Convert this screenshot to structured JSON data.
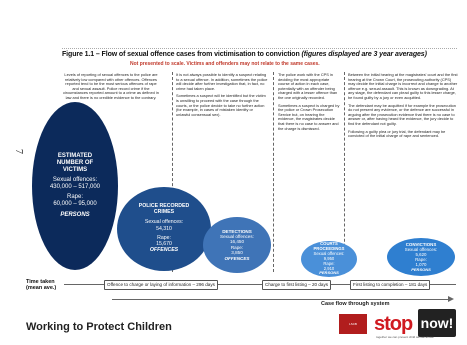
{
  "page": {
    "number": "7"
  },
  "figure": {
    "title": "Figure 1.1 – Flow of sexual offence cases from victimisation to conviction",
    "title_emph": "(figures displayed are 3 year averages)",
    "note": "Not presented to scale. Victims and offenders may not relate to the same cases."
  },
  "columns": [
    {
      "paragraphs": [
        "Levels of reporting of sexual offences to the police are relatively low compared with other offences. Offences reported tend to be the most serious offences of rape and sexual assault. Police record crime if the circumstances reported amount to a crime as defined in law and there is no credible evidence to the contrary."
      ]
    },
    {
      "paragraphs": [
        "It is not always possible to identify a suspect relating to a sexual offence. In addition, sometimes the police will decide after further investigation that, in fact, no crime had taken place.",
        "Sometimes a suspect will be identified but the victim is unwilling to proceed with the case through the courts, or the police decide to take no further action (for example, in cases of mistaken identity or unlawful consensual sex)."
      ]
    },
    {
      "paragraphs": [
        "The police work with the CPS in deciding the most appropriate course of action in each case, potentially with an offender being charged with a lesser offence than the one originally recorded.",
        "Sometimes a suspect is charged by the police or Crown Prosecution Service but, on hearing the evidence, the magistrates decide that there is no case to answer and the charge is dismissed."
      ]
    },
    {
      "paragraphs": [
        "Between the initial hearing at the magistrates' court and the first hearing at the Crown Court, the prosecuting authority (CPS) may decide the initial charge is incorrect and change to another offence e.g. sexual assault. This is known as downgrading. At any stage, the defendant can plead guilty to this lesser charge, be found guilty by a jury or even acquitted.",
        "The defendant may be acquitted if for example the prosecution do not present any evidence, or the defence are successful in arguing after the prosecution evidence that there is no case to answer or, after having heard the evidence, the jury decide to find the defendant not guilty.",
        "Following a guilty plea or jury trial, the defendant may be convicted of the initial charge of rape and sentenced."
      ]
    }
  ],
  "stages": [
    {
      "title": "ESTIMATED NUMBER OF VICTIMS",
      "label1": "Sexual offences:",
      "value1": "430,000 – 517,000",
      "label2": "Rape:",
      "value2": "60,000 – 95,000",
      "foot": "PERSONS"
    },
    {
      "title": "POLICE RECORDED CRIMES",
      "label1": "Sexual offences:",
      "value1": "54,310",
      "label2": "Rape:",
      "value2": "15,670",
      "foot": "OFFENCES"
    },
    {
      "title": "DETECTIONS",
      "label1": "Sexual offences:",
      "value1": "16,450",
      "label2": "Rape:",
      "value2": "3,850",
      "foot": "OFFENCES"
    },
    {
      "title": "COURTS PROCEEDINGS",
      "label1": "Sexual offences:",
      "value1": "9,950",
      "label2": "Rape:",
      "value2": "2,910",
      "foot": "PERSONS"
    },
    {
      "title": "CONVICTIONS",
      "label1": "Sexual offences:",
      "value1": "5,620",
      "label2": "Rape:",
      "value2": "1,070",
      "foot": "PERSONS"
    }
  ],
  "timeline": {
    "label": "Time taken (mean ave.)",
    "segments": [
      "Offence to charge or laying of information – 296 days",
      "Charge to first listing – 20 days",
      "First listing to completion – 181 days"
    ]
  },
  "flow_label": "Case flow through system",
  "footer": {
    "title": "Working to Protect Children",
    "logo_text": "LSCB",
    "brand_stop": "stop it",
    "brand_now": "now!",
    "brand_tag": "together we can prevent child sexual abuse"
  }
}
